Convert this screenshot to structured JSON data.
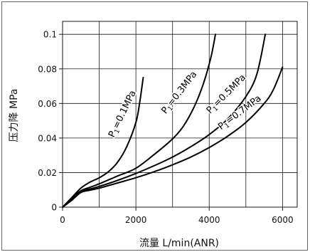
{
  "chart_data": {
    "type": "line",
    "xlabel": "流量 L/min(ANR)",
    "ylabel": "压力降 MPa",
    "xlim": [
      0,
      6400
    ],
    "ylim": [
      0,
      0.1075
    ],
    "xticks": [
      0,
      2000,
      4000,
      6000
    ],
    "xtick_labels": [
      "0",
      "2000",
      "4000",
      "6000"
    ],
    "yticks": [
      0,
      0.02,
      0.04,
      0.06,
      0.08,
      0.1
    ],
    "ytick_labels": [
      "0",
      "0.02",
      "0.04",
      "0.06",
      "0.08",
      "0.1"
    ],
    "x_gridlines": [
      1000,
      2000,
      3000,
      4000,
      5000,
      6000
    ],
    "y_gridlines": [
      0.02,
      0.04,
      0.06,
      0.08,
      0.1
    ],
    "grid": true,
    "legend": false,
    "series": [
      {
        "name": "P1=0.1MPa",
        "color": "#000000",
        "x": [
          0,
          250,
          500,
          750,
          1000,
          1250,
          1500,
          1750,
          2000,
          2100,
          2200
        ],
        "y": [
          0,
          0.0055,
          0.011,
          0.0145,
          0.017,
          0.0205,
          0.026,
          0.035,
          0.049,
          0.06,
          0.075
        ]
      },
      {
        "name": "P1=0.3MPa",
        "color": "#000000",
        "x": [
          0,
          250,
          500,
          750,
          1000,
          1500,
          2000,
          2500,
          3000,
          3300,
          3600,
          3850,
          4050,
          4170
        ],
        "y": [
          0,
          0.005,
          0.0095,
          0.0115,
          0.0135,
          0.018,
          0.0225,
          0.0305,
          0.0395,
          0.047,
          0.0585,
          0.072,
          0.087,
          0.1
        ]
      },
      {
        "name": "P1=0.5MPa",
        "color": "#000000",
        "x": [
          0,
          250,
          500,
          750,
          1000,
          1500,
          2000,
          2500,
          3000,
          3500,
          4000,
          4500,
          5000,
          5300,
          5530
        ],
        "y": [
          0,
          0.0045,
          0.009,
          0.0105,
          0.012,
          0.0155,
          0.0195,
          0.024,
          0.029,
          0.035,
          0.042,
          0.051,
          0.064,
          0.077,
          0.1
        ]
      },
      {
        "name": "P1=0.7MPa",
        "color": "#000000",
        "x": [
          0,
          250,
          500,
          750,
          1000,
          1500,
          2000,
          2500,
          3000,
          3500,
          4000,
          4500,
          5000,
          5500,
          5750,
          6000
        ],
        "y": [
          0,
          0.004,
          0.0085,
          0.0098,
          0.011,
          0.014,
          0.017,
          0.0205,
          0.0245,
          0.029,
          0.0345,
          0.041,
          0.049,
          0.06,
          0.068,
          0.081
        ]
      }
    ]
  }
}
